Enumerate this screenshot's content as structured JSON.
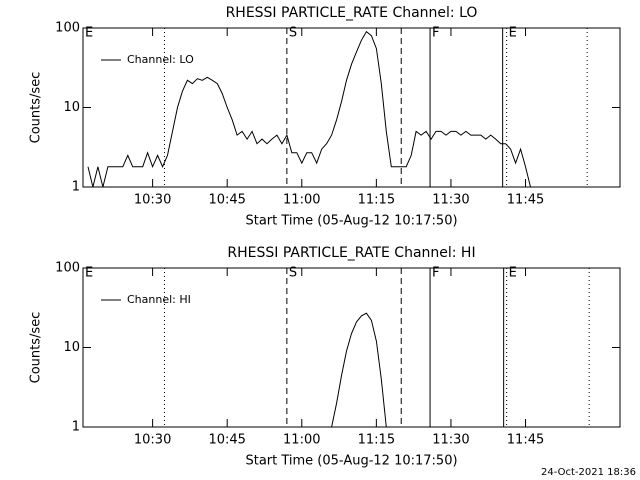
{
  "chart_data": [
    {
      "type": "line",
      "title": "RHESSI PARTICLE_RATE Channel: LO",
      "xlabel": "Start Time (05-Aug-12 10:17:50)",
      "ylabel": "Counts/sec",
      "ylog": true,
      "ylim": [
        1,
        100
      ],
      "yticks": [
        1,
        10,
        100
      ],
      "xlim": [
        "10:16",
        "12:04"
      ],
      "xticks": [
        "10:30",
        "10:45",
        "11:00",
        "11:15",
        "11:30",
        "11:45"
      ],
      "legend": "upper left",
      "x": [
        "10:17",
        "10:18",
        "10:19",
        "10:20",
        "10:21",
        "10:22",
        "10:23",
        "10:24",
        "10:25",
        "10:26",
        "10:27",
        "10:28",
        "10:29",
        "10:30",
        "10:31",
        "10:32",
        "10:33",
        "10:34",
        "10:35",
        "10:36",
        "10:37",
        "10:38",
        "10:39",
        "10:40",
        "10:41",
        "10:42",
        "10:43",
        "10:44",
        "10:45",
        "10:46",
        "10:47",
        "10:48",
        "10:49",
        "10:50",
        "10:51",
        "10:52",
        "10:53",
        "10:54",
        "10:55",
        "10:56",
        "10:57",
        "10:58",
        "10:59",
        "11:00",
        "11:01",
        "11:02",
        "11:03",
        "11:04",
        "11:05",
        "11:06",
        "11:07",
        "11:08",
        "11:09",
        "11:10",
        "11:11",
        "11:12",
        "11:13",
        "11:14",
        "11:15",
        "11:16",
        "11:17",
        "11:18",
        "11:19",
        "11:20",
        "11:21",
        "11:22",
        "11:23",
        "11:24",
        "11:25",
        "11:26",
        "11:27",
        "11:28",
        "11:29",
        "11:30",
        "11:31",
        "11:32",
        "11:33",
        "11:34",
        "11:35",
        "11:36",
        "11:37",
        "11:38",
        "11:39",
        "11:40",
        "11:41",
        "11:42",
        "11:43",
        "11:44",
        "11:45",
        "11:46"
      ],
      "series": [
        {
          "name": "Channel: LO",
          "color": "#000000",
          "values": [
            1.8,
            1,
            1.8,
            1,
            1.8,
            1.8,
            1.8,
            1.8,
            2.5,
            1.8,
            1.8,
            1.8,
            2.7,
            1.8,
            2.5,
            1.8,
            2.5,
            5,
            10,
            16,
            22,
            20,
            23,
            22,
            24,
            22,
            20,
            15,
            10,
            7,
            4.5,
            5,
            4,
            5,
            3.5,
            4,
            3.5,
            4,
            4.5,
            3.5,
            4.5,
            2.7,
            2.7,
            2,
            2.7,
            2.7,
            2,
            3,
            3.5,
            4.5,
            7,
            12,
            22,
            35,
            50,
            70,
            90,
            80,
            55,
            20,
            5,
            1.8,
            1.8,
            1.8,
            1.8,
            2.5,
            5,
            4.5,
            5,
            4,
            5,
            5,
            4.5,
            5,
            5,
            4.5,
            5,
            4.5,
            4.5,
            4.5,
            4,
            4.5,
            4,
            3.5,
            3.5,
            3,
            2,
            3,
            1.8,
            1
          ]
        }
      ],
      "markers": [
        {
          "x": "10:32.4",
          "style": "dotted"
        },
        {
          "x": "10:57",
          "style": "dashed"
        },
        {
          "x": "11:20",
          "style": "dashed"
        },
        {
          "x": "11:25.8",
          "style": "solid"
        },
        {
          "x": "11:40.4",
          "style": "solid"
        },
        {
          "x": "11:41.2",
          "style": "dotted"
        },
        {
          "x": "11:57.4",
          "style": "dotted"
        }
      ],
      "flags": [
        {
          "x": "10:16",
          "label": "E"
        },
        {
          "x": "10:57",
          "label": "S"
        },
        {
          "x": "11:25.8",
          "label": "F"
        },
        {
          "x": "11:41.2",
          "label": "E"
        }
      ]
    },
    {
      "type": "line",
      "title": "RHESSI PARTICLE_RATE Channel: HI",
      "xlabel": "Start Time (05-Aug-12 10:17:50)",
      "ylabel": "Counts/sec",
      "ylog": true,
      "ylim": [
        1,
        100
      ],
      "yticks": [
        1,
        10,
        100
      ],
      "xlim": [
        "10:16",
        "12:04"
      ],
      "xticks": [
        "10:30",
        "10:45",
        "11:00",
        "11:15",
        "11:30",
        "11:45"
      ],
      "legend": "upper left",
      "x": [
        "11:06",
        "11:07",
        "11:08",
        "11:09",
        "11:10",
        "11:11",
        "11:12",
        "11:13",
        "11:14",
        "11:15",
        "11:16",
        "11:17"
      ],
      "series": [
        {
          "name": "Channel: HI",
          "color": "#000000",
          "values": [
            1,
            2,
            4.5,
            9,
            15,
            21,
            25,
            27,
            22,
            12,
            4,
            1
          ]
        }
      ],
      "markers": [
        {
          "x": "10:32.4",
          "style": "dotted"
        },
        {
          "x": "10:57",
          "style": "dashed"
        },
        {
          "x": "11:20",
          "style": "dashed"
        },
        {
          "x": "11:25.8",
          "style": "solid"
        },
        {
          "x": "11:40.6",
          "style": "solid"
        },
        {
          "x": "11:41.2",
          "style": "dotted"
        },
        {
          "x": "11:57.8",
          "style": "dotted"
        }
      ],
      "flags": [
        {
          "x": "10:16",
          "label": "E"
        },
        {
          "x": "10:57",
          "label": "S"
        },
        {
          "x": "11:25.8",
          "label": "F"
        },
        {
          "x": "11:41.2",
          "label": "E"
        }
      ]
    }
  ],
  "footer": "24-Oct-2021 18:36"
}
